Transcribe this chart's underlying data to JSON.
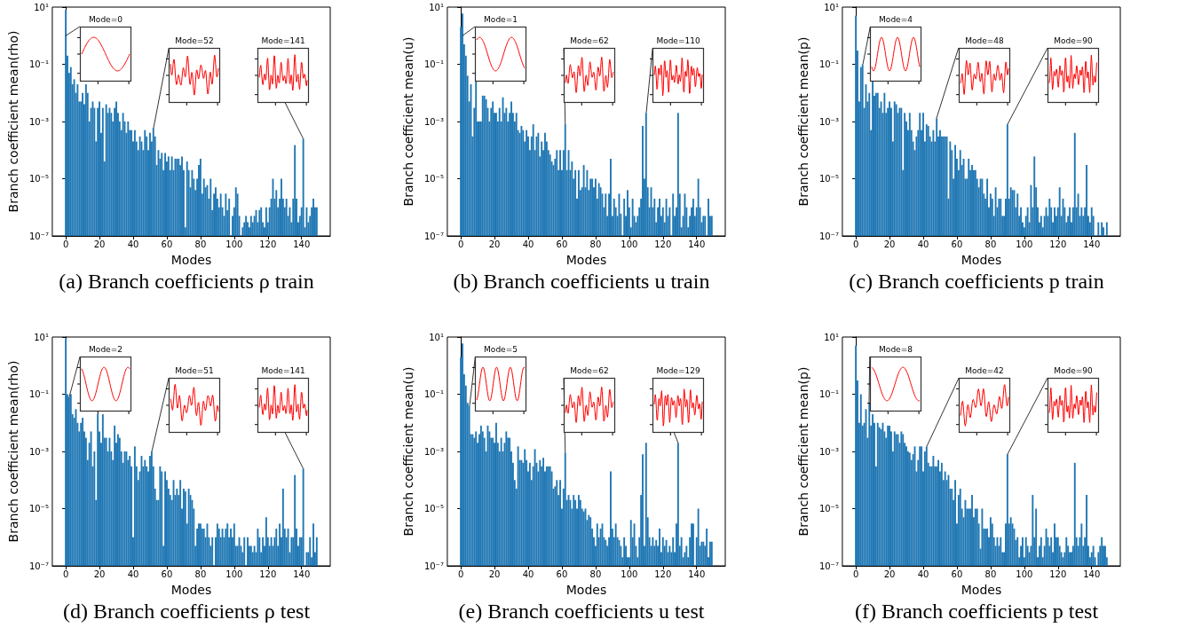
{
  "chart_data": [
    {
      "type": "bar",
      "title": "(a) Branch coefficients ρ train",
      "xlabel": "Modes",
      "ylabel": "Branch coefficient mean(rho)",
      "color": "#1f77b4",
      "log": "y",
      "xlim": [
        -8,
        157
      ],
      "xticks": [
        0,
        20,
        40,
        60,
        80,
        100,
        120,
        140
      ],
      "ylim": [
        1e-07,
        10
      ],
      "yticks": [
        {
          "value": 1e-07,
          "label": "10⁻⁷"
        },
        {
          "value": 1e-05,
          "label": "10⁻⁵"
        },
        {
          "value": 0.001,
          "label": "10⁻³"
        },
        {
          "value": 0.1,
          "label": "10⁻¹"
        },
        {
          "value": 10,
          "label": "10¹"
        }
      ],
      "annotations": [
        {
          "text": "Mode=0",
          "x": 0,
          "y": 1
        },
        {
          "text": "Mode=52",
          "x": 52,
          "y": 0.0006
        },
        {
          "text": "Mode=141",
          "x": 141,
          "y": 0.00025
        }
      ],
      "x": [
        0,
        1,
        2,
        3,
        4,
        5,
        6,
        7,
        8,
        9,
        10,
        11,
        12,
        13,
        14,
        15,
        16,
        17,
        18,
        19,
        20,
        21,
        22,
        23,
        24,
        25,
        26,
        27,
        28,
        29,
        30,
        31,
        32,
        33,
        34,
        35,
        36,
        37,
        38,
        39,
        40,
        41,
        42,
        43,
        44,
        45,
        46,
        47,
        48,
        49,
        50,
        51,
        52,
        53,
        54,
        55,
        56,
        57,
        58,
        59,
        60,
        61,
        62,
        63,
        64,
        65,
        66,
        67,
        68,
        69,
        70,
        71,
        72,
        73,
        74,
        75,
        76,
        77,
        78,
        79,
        80,
        81,
        82,
        83,
        84,
        85,
        86,
        87,
        88,
        89,
        90,
        91,
        92,
        93,
        94,
        95,
        96,
        97,
        98,
        99,
        100,
        101,
        102,
        103,
        104,
        105,
        106,
        107,
        108,
        109,
        110,
        111,
        112,
        113,
        114,
        115,
        116,
        117,
        118,
        119,
        120,
        121,
        122,
        123,
        124,
        125,
        126,
        127,
        128,
        129,
        130,
        131,
        132,
        133,
        134,
        135,
        136,
        137,
        138,
        139,
        140,
        141,
        142,
        143,
        144,
        145,
        146,
        147,
        148,
        149
      ],
      "values": [
        8,
        0.2,
        0.05,
        0.08,
        0.02,
        0.03,
        0.01,
        0.02,
        0.005,
        0.005,
        0.01,
        0.004,
        0.02,
        0.01,
        0.001,
        0.003,
        0.005,
        0.003,
        0.0002,
        0.003,
        0.005,
        0.0004,
        0.003,
        4e-05,
        0.004,
        0.002,
        0.003,
        0.002,
        0.001,
        0.003,
        0.005,
        0.002,
        0.001,
        0.0005,
        0.002,
        0.001,
        0.0004,
        0.001,
        0.0005,
        0.0005,
        0.0002,
        0.0005,
        0.0002,
        0.0001,
        0.0003,
        0.0002,
        0.0001,
        0.0005,
        0.0003,
        0.0001,
        0.0004,
        0.0002,
        0.0006,
        0.0003,
        3e-05,
        0.0001,
        5e-05,
        8e-05,
        2e-05,
        8e-05,
        4e-05,
        6e-05,
        2e-05,
        6e-05,
        2e-05,
        5e-05,
        5e-05,
        5e-05,
        3e-05,
        6e-05,
        2e-05,
        2e-07,
        4e-05,
        2e-05,
        5e-06,
        2e-05,
        1e-05,
        4e-06,
        1e-05,
        3e-05,
        5e-05,
        3e-06,
        1e-05,
        5e-06,
        6e-06,
        2e-06,
        1e-05,
        8e-07,
        3e-06,
        5e-06,
        2e-06,
        1e-06,
        3e-06,
        1e-06,
        5e-07,
        3e-06,
        8e-07,
        2e-06,
        null,
        5e-07,
        1e-06,
        5e-06,
        3e-06,
        5e-07,
        null,
        2e-07,
        3e-07,
        5e-07,
        3e-07,
        2e-07,
        5e-07,
        3e-07,
        5e-07,
        8e-07,
        3e-07,
        8e-07,
        1e-06,
        3e-07,
        2e-07,
        1e-06,
        3e-07,
        1e-06,
        2e-06,
        1e-05,
        2e-06,
        4e-06,
        1e-06,
        2e-06,
        1e-05,
        2e-06,
        1e-06,
        2e-06,
        5e-07,
        1e-06,
        3e-07,
        2e-06,
        0.00015,
        2e-06,
        3e-07,
        5e-07,
        1e-06,
        0.00025,
        2e-07,
        1e-06,
        3e-07,
        5e-07,
        1e-06,
        2e-06,
        1e-06,
        1e-06
      ]
    },
    {
      "type": "bar",
      "title": "(b) Branch coefficients u train",
      "xlabel": "Modes",
      "ylabel": "Branch coefficient mean(u)",
      "color": "#1f77b4",
      "log": "y",
      "xlim": [
        -8,
        157
      ],
      "xticks": [
        0,
        20,
        40,
        60,
        80,
        100,
        120,
        140
      ],
      "ylim": [
        1e-07,
        10
      ],
      "yticks": [
        {
          "value": 1e-07,
          "label": "10⁻⁷"
        },
        {
          "value": 1e-05,
          "label": "10⁻⁵"
        },
        {
          "value": 0.001,
          "label": "10⁻³"
        },
        {
          "value": 0.1,
          "label": "10⁻¹"
        },
        {
          "value": 10,
          "label": "10¹"
        }
      ],
      "annotations": [
        {
          "text": "Mode=1",
          "x": 1,
          "y": 1
        },
        {
          "text": "Mode=62",
          "x": 62,
          "y": 0.0008
        },
        {
          "text": "Mode=110",
          "x": 110,
          "y": 0.002
        }
      ],
      "x": [
        0,
        1,
        2,
        3,
        4,
        5,
        6,
        7,
        8,
        9,
        10,
        11,
        12,
        13,
        14,
        15,
        16,
        17,
        18,
        19,
        20,
        21,
        22,
        23,
        24,
        25,
        26,
        27,
        28,
        29,
        30,
        31,
        32,
        33,
        34,
        35,
        36,
        37,
        38,
        39,
        40,
        41,
        42,
        43,
        44,
        45,
        46,
        47,
        48,
        49,
        50,
        51,
        52,
        53,
        54,
        55,
        56,
        57,
        58,
        59,
        60,
        61,
        62,
        63,
        64,
        65,
        66,
        67,
        68,
        69,
        70,
        71,
        72,
        73,
        74,
        75,
        76,
        77,
        78,
        79,
        80,
        81,
        82,
        83,
        84,
        85,
        86,
        87,
        88,
        89,
        90,
        91,
        92,
        93,
        94,
        95,
        96,
        97,
        98,
        99,
        100,
        101,
        102,
        103,
        104,
        105,
        106,
        107,
        108,
        109,
        110,
        111,
        112,
        113,
        114,
        115,
        116,
        117,
        118,
        119,
        120,
        121,
        122,
        123,
        124,
        125,
        126,
        127,
        128,
        129,
        130,
        131,
        132,
        133,
        134,
        135,
        136,
        137,
        138,
        139,
        140,
        141,
        142,
        143,
        144,
        145,
        146,
        147,
        148,
        149
      ],
      "values": [
        2,
        6,
        0.5,
        0.2,
        0.04,
        0.005,
        0.02,
        0.0003,
        0.003,
        0.03,
        0.001,
        0.001,
        0.001,
        0.008,
        0.008,
        0.006,
        0.003,
        0.001,
        0.003,
        0.005,
        0.002,
        0.002,
        0.001,
        0.003,
        0.001,
        0.007,
        0.002,
        0.003,
        0.001,
        0.002,
        0.005,
        0.002,
        0.001,
        0.002,
        0.0005,
        0.0004,
        0.0007,
        0.0005,
        0.0002,
        0.0005,
        0.0003,
        0.0001,
        0.0003,
        0.0008,
        0.0001,
        0.0003,
        0.0004,
        6e-05,
        0.0002,
        0.0001,
        0.0004,
        0.0002,
        0.0001,
        7e-05,
        4e-05,
        3e-05,
        5e-05,
        0.0001,
        2e-05,
        0.0001,
        2e-05,
        0.0001,
        0.0008,
        2e-05,
        0.0001,
        2e-05,
        4e-05,
        1e-05,
        2e-05,
        2e-06,
        2e-05,
        4e-06,
        5e-06,
        3e-05,
        5e-06,
        2e-05,
        4e-06,
        1e-05,
        1e-05,
        5e-06,
        1e-05,
        2e-06,
        7e-06,
        5e-06,
        3e-06,
        1e-06,
        3e-06,
        5e-07,
        3e-06,
        5e-05,
        5e-07,
        2e-06,
        1e-06,
        5e-07,
        3e-06,
        6e-07,
        null,
        2e-06,
        5e-07,
        4e-06,
        1e-06,
        2e-07,
        2e-06,
        5e-07,
        3e-07,
        5e-07,
        1e-06,
        2e-06,
        0.0007,
        1e-05,
        0.002,
        5e-06,
        1e-06,
        5e-06,
        1e-06,
        2e-06,
        3e-07,
        1e-06,
        2e-06,
        5e-07,
        1e-06,
        3e-07,
        2e-06,
        5e-07,
        1e-06,
        null,
        3e-06,
        5e-07,
        1e-06,
        0.002,
        3e-06,
        2e-07,
        5e-07,
        3e-06,
        1e-06,
        2e-07,
        5e-07,
        1e-06,
        2e-06,
        5e-07,
        1e-06,
        1e-05,
        1e-06,
        3e-07,
        5e-07,
        5e-07,
        null,
        2e-06,
        5e-07,
        5e-07
      ]
    },
    {
      "type": "bar",
      "title": "(c) Branch coefficients p train",
      "xlabel": "Modes",
      "ylabel": "Branch coefficient mean(p)",
      "color": "#1f77b4",
      "log": "y",
      "xlim": [
        -8,
        157
      ],
      "xticks": [
        0,
        20,
        40,
        60,
        80,
        100,
        120,
        140
      ],
      "ylim": [
        1e-07,
        10
      ],
      "yticks": [
        {
          "value": 1e-07,
          "label": "10⁻⁷"
        },
        {
          "value": 1e-05,
          "label": "10⁻⁵"
        },
        {
          "value": 0.001,
          "label": "10⁻³"
        },
        {
          "value": 0.1,
          "label": "10⁻¹"
        },
        {
          "value": 10,
          "label": "10¹"
        }
      ],
      "annotations": [
        {
          "text": "Mode=4",
          "x": 4,
          "y": 0.1
        },
        {
          "text": "Mode=48",
          "x": 48,
          "y": 0.0013
        },
        {
          "text": "Mode=90",
          "x": 90,
          "y": 0.0008
        }
      ],
      "x": [
        0,
        1,
        2,
        3,
        4,
        5,
        6,
        7,
        8,
        9,
        10,
        11,
        12,
        13,
        14,
        15,
        16,
        17,
        18,
        19,
        20,
        21,
        22,
        23,
        24,
        25,
        26,
        27,
        28,
        29,
        30,
        31,
        32,
        33,
        34,
        35,
        36,
        37,
        38,
        39,
        40,
        41,
        42,
        43,
        44,
        45,
        46,
        47,
        48,
        49,
        50,
        51,
        52,
        53,
        54,
        55,
        56,
        57,
        58,
        59,
        60,
        61,
        62,
        63,
        64,
        65,
        66,
        67,
        68,
        69,
        70,
        71,
        72,
        73,
        74,
        75,
        76,
        77,
        78,
        79,
        80,
        81,
        82,
        83,
        84,
        85,
        86,
        87,
        88,
        89,
        90,
        91,
        92,
        93,
        94,
        95,
        96,
        97,
        98,
        99,
        100,
        101,
        102,
        103,
        104,
        105,
        106,
        107,
        108,
        109,
        110,
        111,
        112,
        113,
        114,
        115,
        116,
        117,
        118,
        119,
        120,
        121,
        122,
        123,
        124,
        125,
        126,
        127,
        128,
        129,
        130,
        131,
        132,
        133,
        134,
        135,
        136,
        137,
        138,
        139,
        140,
        141,
        142,
        143,
        144,
        145,
        146,
        147,
        148,
        149
      ],
      "values": [
        5,
        0.3,
        0.005,
        0.08,
        0.1,
        0.003,
        0.02,
        0.005,
        0.01,
        0.0005,
        0.03,
        0.008,
        0.01,
        0.01,
        0.003,
        0.005,
        0.002,
        0.01,
        0.002,
        0.003,
        0.005,
        0.003,
        0.0002,
        0.005,
        0.004,
        0.002,
        0.003,
        0.003,
        2e-05,
        0.002,
        0.001,
        0.0005,
        0.002,
        0.0005,
        0.0002,
        0.0001,
        0.0003,
        0.0005,
        0.002,
        0.0005,
        0.002,
        0.0002,
        0.0008,
        0.0007,
        0.0003,
        0.0002,
        0.0005,
        0.0002,
        0.0013,
        0.0003,
        0.0005,
        0.0003,
        0.0003,
        0.0003,
        0.0003,
        2e-06,
        0.0002,
        0.0001,
        1e-05,
        0.00015,
        5e-05,
        2e-05,
        0.0001,
        3e-05,
        5e-05,
        1e-05,
        1e-05,
        5e-05,
        2e-05,
        3e-05,
        2e-05,
        2e-05,
        1e-05,
        5e-06,
        1e-05,
        1e-05,
        3e-06,
        2e-06,
        1e-05,
        1e-06,
        3e-06,
        2e-06,
        5e-07,
        5e-06,
        1e-06,
        2e-06,
        2e-06,
        5e-07,
        5e-07,
        2e-06,
        0.0008,
        2e-06,
        5e-06,
        4e-06,
        4e-06,
        1e-06,
        3e-06,
        5e-07,
        1e-06,
        3e-07,
        2e-07,
        5e-07,
        1e-06,
        3e-07,
        6e-06,
        1e-06,
        6e-05,
        5e-06,
        1e-06,
        3e-07,
        5e-07,
        2e-07,
        5e-07,
        1e-06,
        5e-07,
        2e-06,
        1e-06,
        3e-07,
        1e-06,
        5e-07,
        1e-06,
        5e-06,
        5e-07,
        2e-06,
        1e-06,
        3e-07,
        5e-07,
        1e-06,
        3e-07,
        1e-06,
        0.0004,
        1e-06,
        3e-06,
        5e-07,
        1e-06,
        5e-07,
        1e-06,
        3e-05,
        5e-07,
        3e-07,
        1e-06,
        5e-07,
        null,
        null,
        3e-07,
        null,
        3e-07,
        2e-07,
        null,
        3e-07
      ]
    },
    {
      "type": "bar",
      "title": "(d) Branch coefficients ρ test",
      "xlabel": "Modes",
      "ylabel": "Branch coefficient mean(rho)",
      "color": "#1f77b4",
      "log": "y",
      "xlim": [
        -8,
        157
      ],
      "xticks": [
        0,
        20,
        40,
        60,
        80,
        100,
        120,
        140
      ],
      "ylim": [
        1e-07,
        10
      ],
      "yticks": [
        {
          "value": 1e-07,
          "label": "10⁻⁷"
        },
        {
          "value": 1e-05,
          "label": "10⁻⁵"
        },
        {
          "value": 0.001,
          "label": "10⁻³"
        },
        {
          "value": 0.1,
          "label": "10⁻¹"
        },
        {
          "value": 10,
          "label": "10¹"
        }
      ],
      "annotations": [
        {
          "text": "Mode=2",
          "x": 2,
          "y": 0.08
        },
        {
          "text": "Mode=51",
          "x": 51,
          "y": 0.001
        },
        {
          "text": "Mode=141",
          "x": 141,
          "y": 0.00025
        }
      ],
      "x": [
        0,
        1,
        2,
        3,
        4,
        5,
        6,
        7,
        8,
        9,
        10,
        11,
        12,
        13,
        14,
        15,
        16,
        17,
        18,
        19,
        20,
        21,
        22,
        23,
        24,
        25,
        26,
        27,
        28,
        29,
        30,
        31,
        32,
        33,
        34,
        35,
        36,
        37,
        38,
        39,
        40,
        41,
        42,
        43,
        44,
        45,
        46,
        47,
        48,
        49,
        50,
        51,
        52,
        53,
        54,
        55,
        56,
        57,
        58,
        59,
        60,
        61,
        62,
        63,
        64,
        65,
        66,
        67,
        68,
        69,
        70,
        71,
        72,
        73,
        74,
        75,
        76,
        77,
        78,
        79,
        80,
        81,
        82,
        83,
        84,
        85,
        86,
        87,
        88,
        89,
        90,
        91,
        92,
        93,
        94,
        95,
        96,
        97,
        98,
        99,
        100,
        101,
        102,
        103,
        104,
        105,
        106,
        107,
        108,
        109,
        110,
        111,
        112,
        113,
        114,
        115,
        116,
        117,
        118,
        119,
        120,
        121,
        122,
        123,
        124,
        125,
        126,
        127,
        128,
        129,
        130,
        131,
        132,
        133,
        134,
        135,
        136,
        137,
        138,
        139,
        140,
        141,
        142,
        143,
        144,
        145,
        146,
        147,
        148,
        149
      ],
      "values": [
        9,
        0.1,
        0.08,
        0.1,
        0.02,
        0.015,
        0.03,
        0.01,
        0.005,
        0.01,
        0.015,
        0.005,
        0.003,
        0.0005,
        0.002,
        0.005,
        0.0003,
        0.001,
        2e-05,
        0.02,
        0.005,
        0.002,
        0.02,
        0.003,
        0.003,
        0.001,
        0.003,
        0.001,
        0.0005,
        0.008,
        0.002,
        0.004,
        0.003,
        0.001,
        0.0004,
        0.001,
        0.001,
        0.0005,
        0.0007,
        0.0003,
        1e-06,
        0.0015,
        0.0003,
        0.0001,
        0.0002,
        0.0007,
        0.0003,
        0.0005,
        0.0003,
        0.0002,
        0.0007,
        0.001,
        0.0003,
        5e-05,
        2e-05,
        2e-05,
        0.0003,
        0.0002,
        5e-07,
        0.0002,
        0.0001,
        5e-05,
        3e-05,
        2e-05,
        0.0001,
        3e-05,
        5e-05,
        3e-05,
        0.0001,
        1e-05,
        5e-05,
        4e-05,
        3e-06,
        5e-05,
        3e-05,
        2e-05,
        1e-05,
        5e-07,
        2e-06,
        3e-06,
        3e-06,
        2e-06,
        2e-06,
        1e-06,
        3e-06,
        1e-06,
        5e-07,
        1e-06,
        null,
        1e-06,
        3e-06,
        2e-06,
        1e-06,
        2e-06,
        1e-06,
        2e-06,
        3e-06,
        1e-06,
        2e-06,
        1e-06,
        3e-06,
        5e-07,
        5e-07,
        1e-06,
        5e-07,
        3e-07,
        1e-06,
        null,
        1e-06,
        5e-07,
        5e-07,
        3e-07,
        5e-07,
        3e-07,
        2e-06,
        1e-06,
        3e-07,
        1e-06,
        5e-07,
        5e-06,
        1e-06,
        5e-07,
        1e-06,
        5e-07,
        1e-06,
        2e-06,
        5e-07,
        3e-06,
        1e-06,
        5e-05,
        2e-06,
        1e-06,
        2e-06,
        3e-07,
        1e-06,
        1e-06,
        0.00015,
        2e-06,
        5e-07,
        1e-06,
        1e-06,
        0.00025,
        null,
        3e-07,
        3e-07,
        1e-06,
        2e-07,
        3e-06,
        3e-07,
        1e-06
      ]
    },
    {
      "type": "bar",
      "title": "(e) Branch coefficients u test",
      "xlabel": "Modes",
      "ylabel": "Branch coefficient mean(u)",
      "color": "#1f77b4",
      "log": "y",
      "xlim": [
        -8,
        157
      ],
      "xticks": [
        0,
        20,
        40,
        60,
        80,
        100,
        120,
        140
      ],
      "ylim": [
        1e-07,
        10
      ],
      "yticks": [
        {
          "value": 1e-07,
          "label": "10⁻⁷"
        },
        {
          "value": 1e-05,
          "label": "10⁻⁵"
        },
        {
          "value": 0.001,
          "label": "10⁻³"
        },
        {
          "value": 0.1,
          "label": "10⁻¹"
        },
        {
          "value": 10,
          "label": "10¹"
        }
      ],
      "annotations": [
        {
          "text": "Mode=5",
          "x": 5,
          "y": 0.04
        },
        {
          "text": "Mode=62",
          "x": 62,
          "y": 0.0009
        },
        {
          "text": "Mode=129",
          "x": 129,
          "y": 0.002
        }
      ],
      "x": [
        0,
        1,
        2,
        3,
        4,
        5,
        6,
        7,
        8,
        9,
        10,
        11,
        12,
        13,
        14,
        15,
        16,
        17,
        18,
        19,
        20,
        21,
        22,
        23,
        24,
        25,
        26,
        27,
        28,
        29,
        30,
        31,
        32,
        33,
        34,
        35,
        36,
        37,
        38,
        39,
        40,
        41,
        42,
        43,
        44,
        45,
        46,
        47,
        48,
        49,
        50,
        51,
        52,
        53,
        54,
        55,
        56,
        57,
        58,
        59,
        60,
        61,
        62,
        63,
        64,
        65,
        66,
        67,
        68,
        69,
        70,
        71,
        72,
        73,
        74,
        75,
        76,
        77,
        78,
        79,
        80,
        81,
        82,
        83,
        84,
        85,
        86,
        87,
        88,
        89,
        90,
        91,
        92,
        93,
        94,
        95,
        96,
        97,
        98,
        99,
        100,
        101,
        102,
        103,
        104,
        105,
        106,
        107,
        108,
        109,
        110,
        111,
        112,
        113,
        114,
        115,
        116,
        117,
        118,
        119,
        120,
        121,
        122,
        123,
        124,
        125,
        126,
        127,
        128,
        129,
        130,
        131,
        132,
        133,
        134,
        135,
        136,
        137,
        138,
        139,
        140,
        141,
        142,
        143,
        144,
        145,
        146,
        147,
        148,
        149
      ],
      "values": [
        2,
        6,
        0.5,
        0.2,
        0.05,
        0.04,
        0.004,
        0.004,
        0.003,
        0.005,
        0.002,
        0.004,
        0.008,
        0.005,
        0.003,
        0.001,
        0.008,
        0.005,
        0.003,
        0.003,
        0.002,
        0.01,
        0.002,
        0.001,
        0.003,
        0.001,
        0.002,
        0.005,
        0.003,
        0.003,
        0.001,
        0.0004,
        0.0001,
        5e-05,
        0.0015,
        0.0005,
        0.0005,
        0.0004,
        0.0012,
        0.0005,
        0.0002,
        0.0004,
        0.0001,
        0.0003,
        0.0012,
        0.0004,
        0.0002,
        0.0005,
        0.0003,
        0.0006,
        0.0002,
        0.0003,
        0.0003,
        0.0003,
        0.0002,
        5e-05,
        6e-05,
        0.0001,
        3e-05,
        0.0001,
        1e-05,
        5e-05,
        0.0009,
        2e-05,
        3e-05,
        2e-05,
        1e-05,
        3e-05,
        2e-05,
        1e-05,
        3e-05,
        2e-05,
        1e-05,
        8e-06,
        1e-05,
        4e-06,
        6e-06,
        5e-06,
        2e-06,
        1e-06,
        5e-07,
        3e-06,
        1e-06,
        2e-06,
        3e-06,
        1e-06,
        8e-07,
        5e-07,
        1e-06,
        0.0002,
        2e-06,
        1e-06,
        3e-06,
        1e-06,
        8e-07,
        5e-07,
        2e-07,
        1e-06,
        5e-07,
        2e-07,
        2e-07,
        4e-06,
        1e-06,
        3e-06,
        5e-07,
        2e-07,
        1e-06,
        3e-05,
        0.0008,
        5e-07,
        0.002,
        5e-06,
        1e-06,
        5e-07,
        1e-06,
        5e-07,
        8e-07,
        5e-07,
        2e-06,
        3e-07,
        1e-06,
        5e-07,
        8e-07,
        3e-07,
        5e-07,
        3e-07,
        1e-06,
        3e-07,
        3e-06,
        0.002,
        5e-07,
        1e-06,
        2e-07,
        3e-07,
        5e-07,
        2e-07,
        1e-06,
        3e-06,
        3e-06,
        null,
        1e-06,
        1e-05,
        5e-07,
        7e-07,
        7e-07,
        5e-07,
        2e-06,
        2e-07,
        7e-07,
        7e-07
      ]
    },
    {
      "type": "bar",
      "title": "(f) Branch coefficients p test",
      "xlabel": "Modes",
      "ylabel": "Branch coefficient mean(p)",
      "color": "#1f77b4",
      "log": "y",
      "xlim": [
        -8,
        157
      ],
      "xticks": [
        0,
        20,
        40,
        60,
        80,
        100,
        120,
        140
      ],
      "ylim": [
        1e-07,
        10
      ],
      "yticks": [
        {
          "value": 1e-07,
          "label": "10⁻⁷"
        },
        {
          "value": 1e-05,
          "label": "10⁻⁵"
        },
        {
          "value": 0.001,
          "label": "10⁻³"
        },
        {
          "value": 0.1,
          "label": "10⁻¹"
        },
        {
          "value": 10,
          "label": "10¹"
        }
      ],
      "annotations": [
        {
          "text": "Mode=8",
          "x": 8,
          "y": 0.05
        },
        {
          "text": "Mode=42",
          "x": 42,
          "y": 0.0015
        },
        {
          "text": "Mode=90",
          "x": 90,
          "y": 0.0008
        }
      ],
      "x": [
        0,
        1,
        2,
        3,
        4,
        5,
        6,
        7,
        8,
        9,
        10,
        11,
        12,
        13,
        14,
        15,
        16,
        17,
        18,
        19,
        20,
        21,
        22,
        23,
        24,
        25,
        26,
        27,
        28,
        29,
        30,
        31,
        32,
        33,
        34,
        35,
        36,
        37,
        38,
        39,
        40,
        41,
        42,
        43,
        44,
        45,
        46,
        47,
        48,
        49,
        50,
        51,
        52,
        53,
        54,
        55,
        56,
        57,
        58,
        59,
        60,
        61,
        62,
        63,
        64,
        65,
        66,
        67,
        68,
        69,
        70,
        71,
        72,
        73,
        74,
        75,
        76,
        77,
        78,
        79,
        80,
        81,
        82,
        83,
        84,
        85,
        86,
        87,
        88,
        89,
        90,
        91,
        92,
        93,
        94,
        95,
        96,
        97,
        98,
        99,
        100,
        101,
        102,
        103,
        104,
        105,
        106,
        107,
        108,
        109,
        110,
        111,
        112,
        113,
        114,
        115,
        116,
        117,
        118,
        119,
        120,
        121,
        122,
        123,
        124,
        125,
        126,
        127,
        128,
        129,
        130,
        131,
        132,
        133,
        134,
        135,
        136,
        137,
        138,
        139,
        140,
        141,
        142,
        143,
        144,
        145,
        146,
        147,
        148,
        149
      ],
      "values": [
        5,
        0.3,
        0.01,
        0.1,
        0.008,
        0.01,
        0.03,
        0.003,
        0.05,
        0.008,
        0.02,
        0.01,
        0.0003,
        0.01,
        0.007,
        0.006,
        0.01,
        0.005,
        0.003,
        0.008,
        0.008,
        0.005,
        0.001,
        0.005,
        0.004,
        0.004,
        0.002,
        0.005,
        0.004,
        0.002,
        0.0015,
        0.001,
        0.0009,
        0.0005,
        0.0008,
        0.0015,
        0.0002,
        0.0005,
        0.0015,
        0.0015,
        0.0002,
        0.001,
        0.0015,
        0.0004,
        0.0003,
        0.0003,
        0.0007,
        0.0003,
        0.0003,
        0.0005,
        0.0002,
        0.0004,
        0.0001,
        0.0002,
        0.0001,
        0.00015,
        5e-05,
        5e-05,
        2e-05,
        0.0001,
        3e-06,
        3e-05,
        5e-05,
        1e-05,
        5e-06,
        2e-05,
        1e-05,
        1e-05,
        1e-05,
        3e-05,
        5e-06,
        1e-05,
        1e-05,
        3e-06,
        4e-07,
        1e-05,
        2e-06,
        2e-06,
        2e-06,
        1e-06,
        5e-06,
        3e-06,
        1e-06,
        5e-07,
        1e-06,
        5e-07,
        1e-06,
        3e-07,
        3e-07,
        3e-06,
        0.0008,
        3e-06,
        5e-06,
        3e-06,
        2e-06,
        8e-07,
        1e-06,
        2e-07,
        5e-07,
        1e-06,
        2e-07,
        1e-06,
        5e-07,
        3e-07,
        5e-07,
        3e-05,
        1e-06,
        1e-05,
        2e-07,
        5e-07,
        1e-06,
        2e-07,
        5e-07,
        2e-06,
        1e-06,
        5e-07,
        1e-06,
        3e-07,
        3e-06,
        1e-06,
        1e-06,
        5e-07,
        3e-07,
        2e-07,
        3e-07,
        1e-06,
        5e-07,
        3e-07,
        3e-07,
        5e-07,
        0.0004,
        1e-06,
        5e-07,
        1e-06,
        3e-06,
        5e-07,
        1e-06,
        3e-05,
        5e-07,
        2e-07,
        3e-07,
        5e-07,
        2e-07,
        null,
        3e-07,
        5e-07,
        1e-06,
        5e-07,
        5e-07,
        2e-07
      ]
    }
  ]
}
